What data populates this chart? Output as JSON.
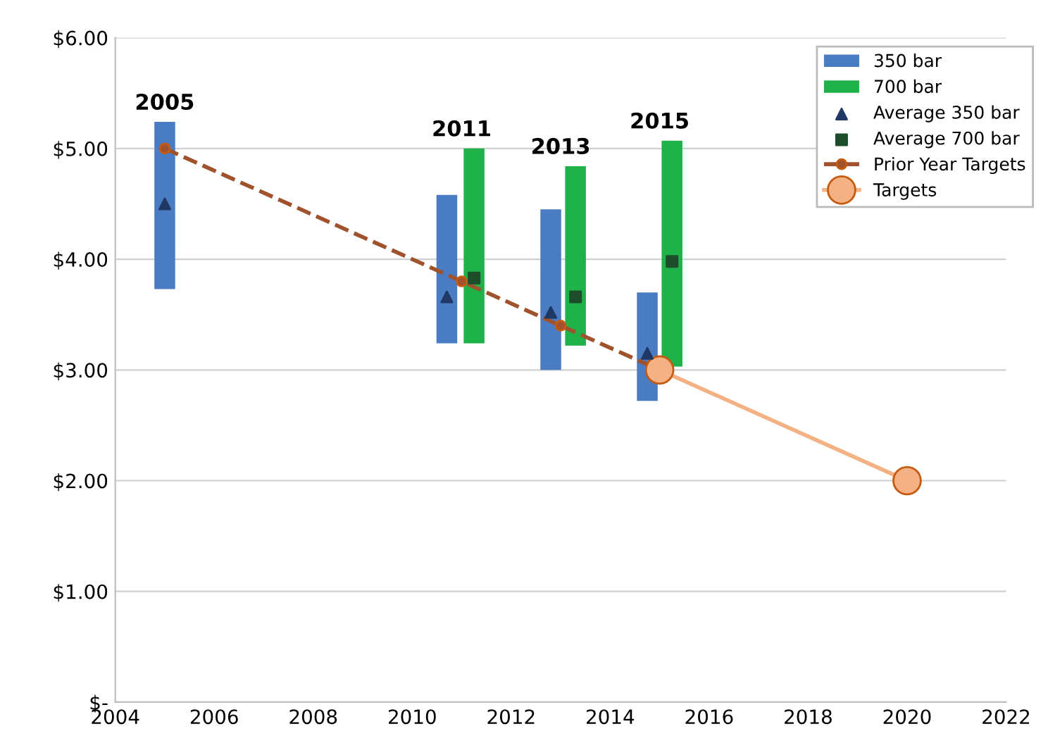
{
  "chart_data": {
    "type": "bar",
    "xlim": [
      2004,
      2022
    ],
    "xticks": [
      2004,
      2006,
      2008,
      2010,
      2012,
      2014,
      2016,
      2018,
      2020,
      2022
    ],
    "ylim": [
      0,
      6
    ],
    "yticks": [
      {
        "value": 0,
        "label": "$-"
      },
      {
        "value": 1,
        "label": "$1.00"
      },
      {
        "value": 2,
        "label": "$2.00"
      },
      {
        "value": 3,
        "label": "$3.00"
      },
      {
        "value": 4,
        "label": "$4.00"
      },
      {
        "value": 5,
        "label": "$5.00"
      },
      {
        "value": 6,
        "label": "$6.00"
      }
    ],
    "grid": "y",
    "legend": "top right",
    "series": [
      {
        "name": "350 bar",
        "color": "#4a7cc4",
        "x": [
          2005,
          2010.7,
          2012.8,
          2014.75
        ],
        "base": [
          3.73,
          3.24,
          3.0,
          2.72
        ],
        "values": [
          1.51,
          1.34,
          1.45,
          0.98
        ]
      },
      {
        "name": "700 bar",
        "color": "#1fb24a",
        "x": [
          2011.25,
          2013.3,
          2015.25
        ],
        "base": [
          3.24,
          3.22,
          3.03
        ],
        "values": [
          1.76,
          1.62,
          2.04
        ]
      },
      {
        "name": "Average 350 bar",
        "type": "scatter",
        "marker": "triangle",
        "color": "#1f3864",
        "x": [
          2005,
          2010.7,
          2012.8,
          2014.75
        ],
        "values": [
          4.5,
          3.66,
          3.52,
          3.15
        ]
      },
      {
        "name": "Average 700 bar",
        "type": "scatter",
        "marker": "square",
        "color": "#1e4d2b",
        "x": [
          2011.25,
          2013.3,
          2015.25
        ],
        "values": [
          3.83,
          3.66,
          3.98
        ]
      },
      {
        "name": "Prior Year Targets",
        "type": "line",
        "marker": "circle",
        "line_style": "dashed",
        "color": "#a0522d",
        "x": [
          2005,
          2011,
          2013,
          2015
        ],
        "values": [
          5.0,
          3.8,
          3.4,
          3.0
        ]
      },
      {
        "name": "Targets",
        "type": "line",
        "marker": "circle",
        "line_style": "solid",
        "color": "#f4b183",
        "x": [
          2015,
          2020
        ],
        "values": [
          3.0,
          2.0
        ]
      }
    ],
    "annotations": [
      {
        "text": "2005",
        "x": 2005,
        "y": 5.24
      },
      {
        "text": "2011",
        "x": 2011,
        "y": 5.0
      },
      {
        "text": "2013",
        "x": 2013,
        "y": 4.84
      },
      {
        "text": "2015",
        "x": 2015,
        "y": 5.07
      }
    ]
  }
}
